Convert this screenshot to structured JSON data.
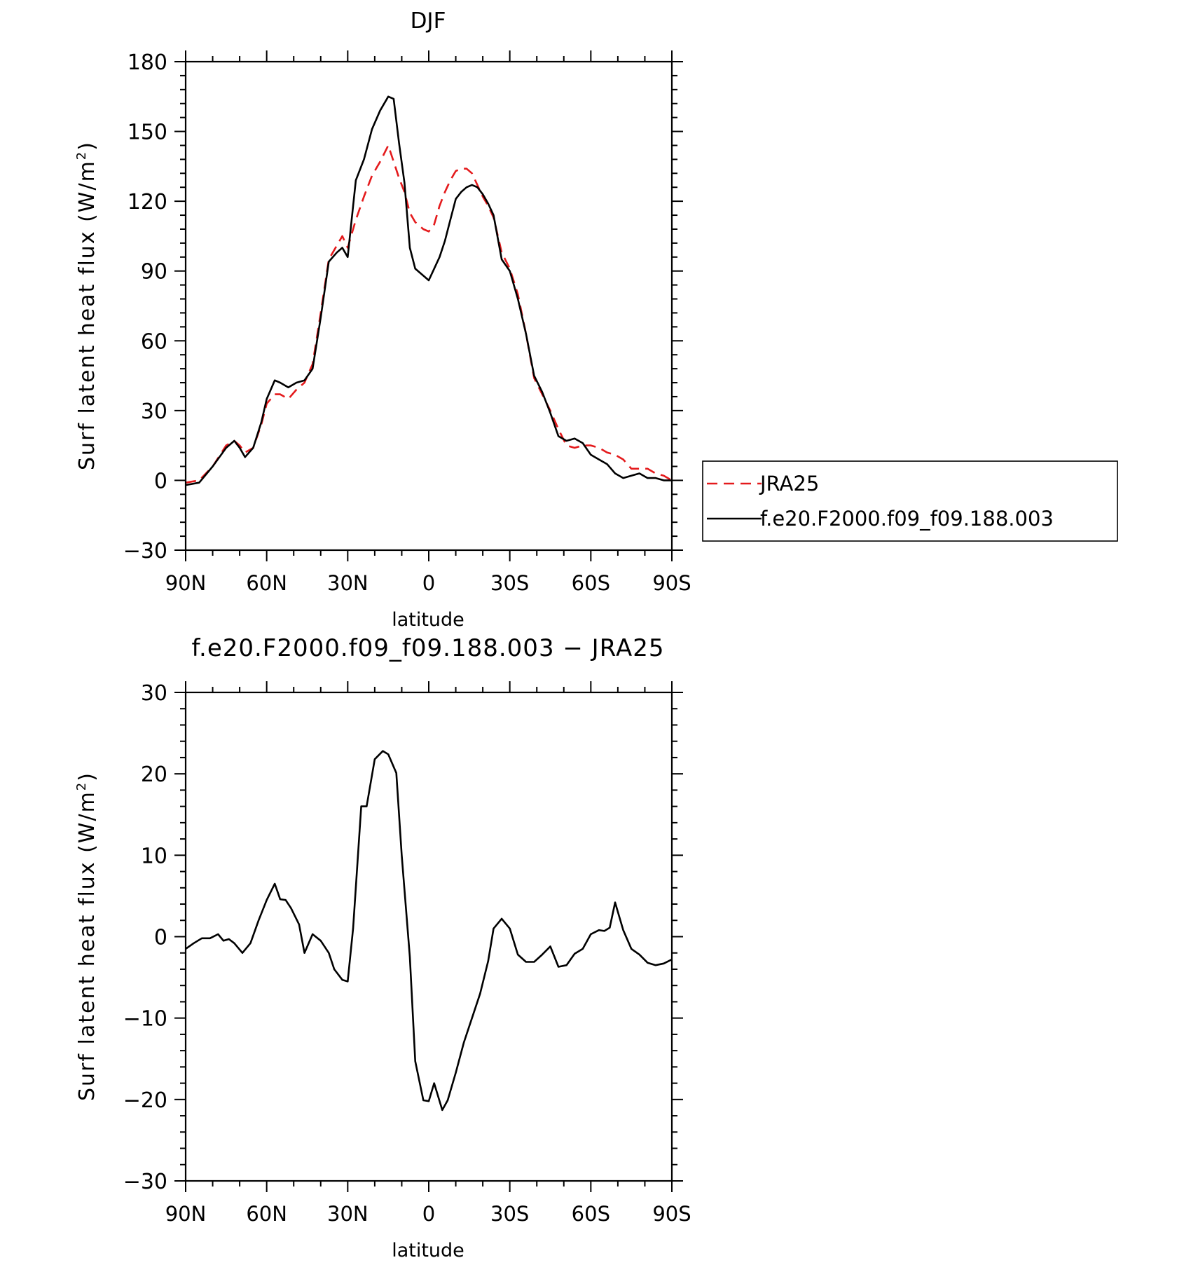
{
  "chart_data": [
    {
      "type": "line",
      "title": "DJF",
      "xlabel": "latitude",
      "ylabel": "Surf latent heat flux (W/m²)",
      "ylabel_main": "Surf latent heat flux (W/m",
      "ylabel_sup": "2",
      "ylabel_close": ")",
      "xlim": [
        90,
        -90
      ],
      "ylim": [
        -30,
        180
      ],
      "xticks": [
        90,
        60,
        30,
        0,
        -30,
        -60,
        -90
      ],
      "xtick_labels": [
        "90N",
        "60N",
        "30N",
        "0",
        "30S",
        "60S",
        "90S"
      ],
      "yticks": [
        -30,
        0,
        30,
        60,
        90,
        120,
        150,
        180
      ],
      "ytick_labels": [
        "−30",
        "0",
        "30",
        "60",
        "90",
        "120",
        "150",
        "180"
      ],
      "grid": false,
      "legend_position": "right",
      "series": [
        {
          "name": "JRA25",
          "color": "#e41a1c",
          "style": "dashed",
          "x": [
            90,
            85,
            80,
            75,
            72,
            70,
            68,
            65,
            62,
            60,
            57,
            55,
            52,
            49,
            46,
            43,
            40,
            37,
            34,
            32,
            30,
            27,
            24,
            21,
            18,
            15,
            13,
            11,
            9,
            7,
            5,
            2,
            0,
            -2,
            -4,
            -6,
            -8,
            -10,
            -12,
            -14,
            -16,
            -18,
            -20,
            -22,
            -24,
            -27,
            -30,
            -33,
            -36,
            -39,
            -42,
            -45,
            -48,
            -51,
            -54,
            -57,
            -60,
            -63,
            -66,
            -69,
            -72,
            -75,
            -78,
            -81,
            -84,
            -87,
            -90
          ],
          "y": [
            -1,
            0,
            6,
            15,
            17,
            15,
            12,
            14,
            24,
            33,
            37,
            37,
            35,
            39,
            42,
            50,
            72,
            95,
            101,
            105,
            100,
            112,
            122,
            131,
            137,
            144,
            137,
            130,
            124,
            115,
            111,
            108,
            107,
            110,
            118,
            124,
            129,
            133,
            134,
            134,
            132,
            127,
            122,
            118,
            113,
            98,
            91,
            80,
            63,
            44,
            37,
            30,
            22,
            15,
            14,
            15,
            15,
            14,
            12,
            11,
            9,
            5,
            5,
            5,
            3,
            2,
            0
          ]
        },
        {
          "name": "f.e20.F2000.f09_f09.188.003",
          "color": "#000000",
          "style": "solid",
          "x": [
            90,
            85,
            80,
            75,
            72,
            70,
            68,
            65,
            62,
            60,
            57,
            55,
            52,
            49,
            46,
            43,
            40,
            37,
            34,
            32,
            30,
            27,
            24,
            21,
            18,
            15,
            13,
            11,
            9,
            7,
            5,
            2,
            0,
            -2,
            -4,
            -6,
            -8,
            -10,
            -12,
            -14,
            -16,
            -18,
            -20,
            -22,
            -24,
            -27,
            -30,
            -33,
            -36,
            -39,
            -42,
            -45,
            -48,
            -51,
            -54,
            -57,
            -60,
            -63,
            -66,
            -69,
            -72,
            -75,
            -78,
            -81,
            -84,
            -87,
            -90
          ],
          "y": [
            -2,
            -1,
            6,
            14,
            17,
            14,
            10,
            14,
            25,
            35,
            43,
            42,
            40,
            42,
            43,
            48,
            70,
            94,
            98,
            100,
            96,
            129,
            138,
            151,
            159,
            165,
            164,
            145,
            128,
            100,
            91,
            88,
            86,
            91,
            96,
            103,
            112,
            121,
            124,
            126,
            127,
            126,
            123,
            119,
            114,
            95,
            90,
            78,
            63,
            45,
            38,
            29,
            19,
            17,
            18,
            16,
            11,
            9,
            7,
            3,
            1,
            2,
            3,
            1,
            1,
            0,
            0
          ]
        }
      ]
    },
    {
      "type": "line",
      "title": "f.e20.F2000.f09_f09.188.003 − JRA25",
      "xlabel": "latitude",
      "ylabel": "Surf latent heat flux (W/m²)",
      "ylabel_main": "Surf latent heat flux (W/m",
      "ylabel_sup": "2",
      "ylabel_close": ")",
      "xlim": [
        90,
        -90
      ],
      "ylim": [
        -30,
        30
      ],
      "xticks": [
        90,
        60,
        30,
        0,
        -30,
        -60,
        -90
      ],
      "xtick_labels": [
        "90N",
        "60N",
        "30N",
        "0",
        "30S",
        "60S",
        "90S"
      ],
      "yticks": [
        -30,
        -20,
        -10,
        0,
        10,
        20,
        30
      ],
      "ytick_labels": [
        "−30",
        "−20",
        "−10",
        "0",
        "10",
        "20",
        "30"
      ],
      "grid": false,
      "series": [
        {
          "color": "#000000",
          "style": "solid",
          "x": [
            90,
            87,
            84,
            81,
            78,
            76,
            74,
            72,
            69,
            66,
            63,
            60,
            57,
            55,
            53,
            51,
            48,
            46,
            43,
            40,
            37,
            35,
            32,
            30,
            28,
            25,
            23,
            20,
            17,
            15,
            12,
            10,
            7,
            5,
            2,
            0,
            -2,
            -5,
            -7,
            -10,
            -13,
            -16,
            -19,
            -22,
            -24,
            -27,
            -30,
            -33,
            -36,
            -39,
            -42,
            -45,
            -48,
            -51,
            -54,
            -57,
            -60,
            -63,
            -65,
            -67,
            -69,
            -72,
            -75,
            -78,
            -81,
            -84,
            -87,
            -90
          ],
          "y": [
            -1.5,
            -0.8,
            -0.2,
            -0.2,
            0.3,
            -0.5,
            -0.3,
            -0.8,
            -2,
            -0.8,
            2,
            4.5,
            6.5,
            4.6,
            4.5,
            3.5,
            1.5,
            -2,
            0.3,
            -0.5,
            -2,
            -4,
            -5.3,
            -5.5,
            1,
            16,
            16,
            21.8,
            22.8,
            22.4,
            20.1,
            10,
            -2.5,
            -15.3,
            -20.1,
            -20.2,
            -18,
            -21.3,
            -20.1,
            -16.7,
            -13,
            -10,
            -7,
            -3,
            1,
            2.2,
            1,
            -2.2,
            -3.1,
            -3.1,
            -2.2,
            -1.2,
            -3.7,
            -3.5,
            -2.1,
            -1.5,
            0.3,
            0.8,
            0.7,
            1.1,
            4.2,
            0.8,
            -1.5,
            -2.2,
            -3.2,
            -3.5,
            -3.3,
            -2.8
          ]
        }
      ]
    }
  ]
}
